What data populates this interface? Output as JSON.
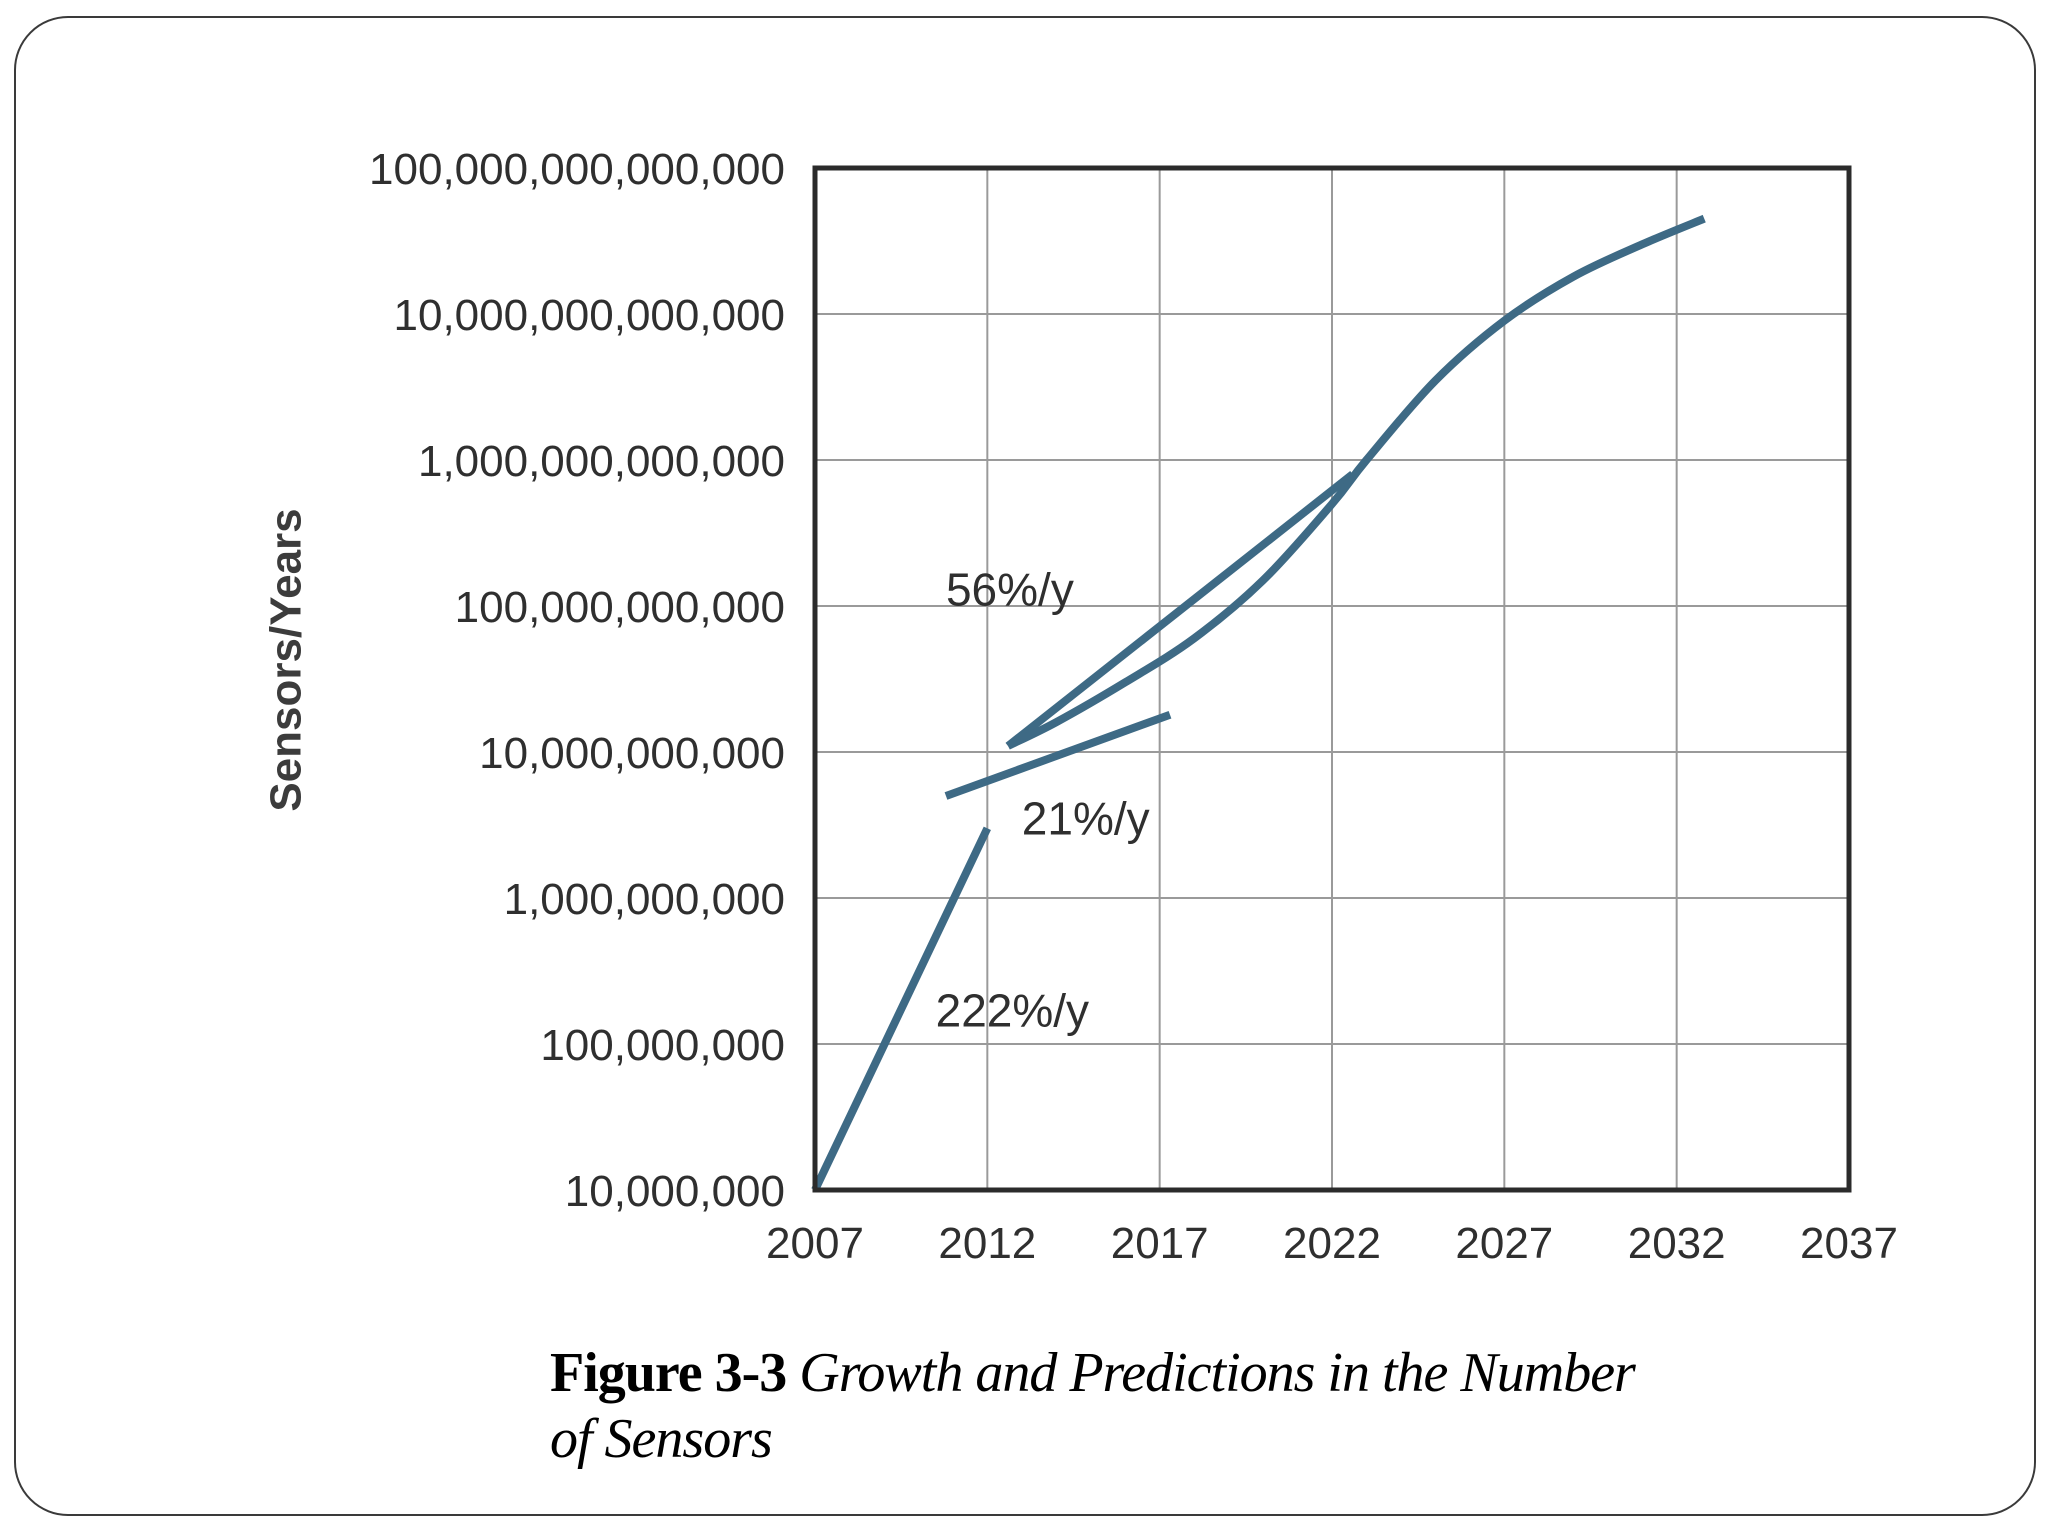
{
  "chart_data": {
    "type": "line",
    "ylabel": "Sensors/Years",
    "xlabel": "",
    "title": "",
    "yscale": "log",
    "xlim": [
      2007,
      2037
    ],
    "ylim": [
      10000000,
      100000000000000
    ],
    "grid": true,
    "x_ticks": [
      "2007",
      "2012",
      "2017",
      "2022",
      "2027",
      "2032",
      "2037"
    ],
    "y_ticks": [
      {
        "value": 10000000,
        "label": "10,000,000"
      },
      {
        "value": 100000000,
        "label": "100,000,000"
      },
      {
        "value": 1000000000,
        "label": "1,000,000,000"
      },
      {
        "value": 10000000000,
        "label": "10,000,000,000"
      },
      {
        "value": 100000000000,
        "label": "100,000,000,000"
      },
      {
        "value": 1000000000000,
        "label": "1,000,000,000,000"
      },
      {
        "value": 10000000000000,
        "label": "10,000,000,000,000"
      },
      {
        "value": 100000000000000,
        "label": "100,000,000,000,000"
      }
    ],
    "line_color": "#3e6a85",
    "series": [
      {
        "id": "growth-222",
        "points": [
          [
            2007,
            10000000
          ],
          [
            2012,
            3000000000
          ]
        ]
      },
      {
        "id": "growth-21",
        "points": [
          [
            2010.8,
            5000000000
          ],
          [
            2017.3,
            18000000000
          ]
        ]
      },
      {
        "id": "growth-56",
        "points": [
          [
            2012.6,
            11000000000
          ],
          [
            2022.6,
            800000000000
          ]
        ]
      },
      {
        "id": "prediction-curve",
        "points": [
          [
            2012.6,
            11000000000
          ],
          [
            2014,
            16000000000
          ],
          [
            2016,
            30000000000
          ],
          [
            2018,
            60000000000
          ],
          [
            2020,
            150000000000
          ],
          [
            2022,
            500000000000
          ],
          [
            2023,
            1000000000000
          ],
          [
            2025,
            3500000000000
          ],
          [
            2027,
            9000000000000
          ],
          [
            2029,
            18000000000000
          ],
          [
            2031,
            30000000000000
          ],
          [
            2032.8,
            45000000000000
          ]
        ]
      }
    ],
    "annotations": [
      {
        "id": "anno-56",
        "text": "56%/y",
        "x": 2010.8,
        "y": 130000000000
      },
      {
        "id": "anno-21",
        "text": "21%/y",
        "x": 2013.0,
        "y": 3500000000
      },
      {
        "id": "anno-222",
        "text": "222%/y",
        "x": 2010.5,
        "y": 170000000
      }
    ]
  },
  "caption": {
    "figure_number": "Figure 3-3",
    "text": "Growth and Predictions in the Number of Sensors"
  }
}
